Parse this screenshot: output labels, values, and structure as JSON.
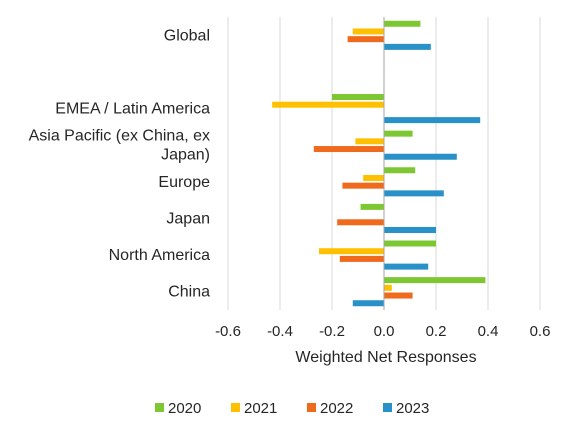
{
  "chart_data": {
    "type": "bar",
    "orientation": "horizontal",
    "categories": [
      "Global",
      "",
      "EMEA / Latin America",
      "Asia Pacific (ex China, ex Japan)",
      "Europe",
      "Japan",
      "North America",
      "China"
    ],
    "category_lines": [
      [
        "Global"
      ],
      [],
      [
        "EMEA / Latin America"
      ],
      [
        "Asia Pacific (ex China, ex",
        "Japan)"
      ],
      [
        "Europe"
      ],
      [
        "Japan"
      ],
      [
        "North America"
      ],
      [
        "China"
      ]
    ],
    "series": [
      {
        "name": "2020",
        "color": "#7dc832",
        "values": [
          0.14,
          null,
          -0.2,
          0.11,
          0.12,
          -0.09,
          0.2,
          0.39
        ]
      },
      {
        "name": "2021",
        "color": "#ffc000",
        "values": [
          -0.12,
          null,
          -0.43,
          -0.11,
          -0.08,
          0.0,
          -0.25,
          0.03
        ]
      },
      {
        "name": "2022",
        "color": "#f06a1e",
        "values": [
          -0.14,
          null,
          0.0,
          -0.27,
          -0.16,
          -0.18,
          -0.17,
          0.11
        ]
      },
      {
        "name": "2023",
        "color": "#2891c8",
        "values": [
          0.18,
          null,
          0.37,
          0.28,
          0.23,
          0.2,
          0.17,
          -0.12
        ]
      }
    ],
    "xlabel": "Weighted Net Responses",
    "xlim": [
      -0.6,
      0.6
    ],
    "xticks": [
      -0.6,
      -0.4,
      -0.2,
      0.0,
      0.2,
      0.4,
      0.6
    ],
    "xtick_labels": [
      "-0.6",
      "-0.4",
      "-0.2",
      "0.0",
      "0.2",
      "0.4",
      "0.6"
    ],
    "grid": true,
    "legend_position": "bottom"
  }
}
